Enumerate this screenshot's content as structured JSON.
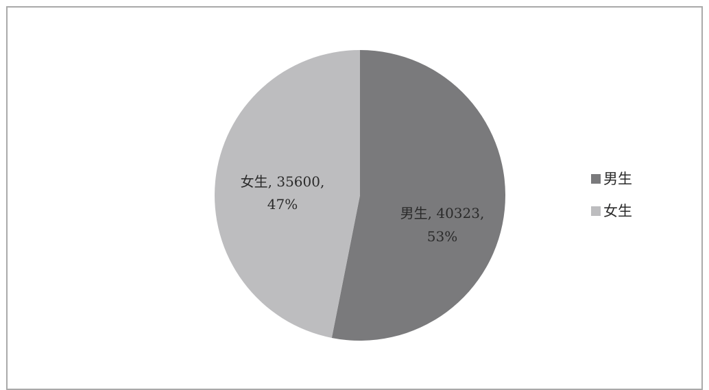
{
  "chart_data": {
    "type": "pie",
    "title": "",
    "categories": [
      "男生",
      "女生"
    ],
    "values": [
      40323,
      35600
    ],
    "percents": [
      "53%",
      "47%"
    ],
    "colors": [
      "#7a7a7c",
      "#bdbdbf"
    ],
    "data_labels": [
      {
        "line1": "男生, 40323,",
        "line2": "53%"
      },
      {
        "line1": "女生, 35600,",
        "line2": "47%"
      }
    ],
    "legend": {
      "position": "right",
      "items": [
        {
          "label": "男生",
          "color": "#7a7a7c"
        },
        {
          "label": "女生",
          "color": "#bdbdbf"
        }
      ]
    },
    "start_angle": "12 o'clock",
    "direction": "clockwise"
  }
}
